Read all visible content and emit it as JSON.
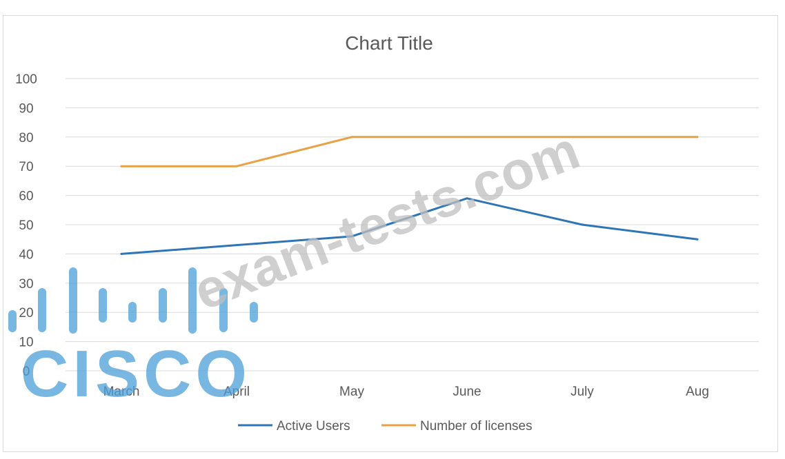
{
  "chart_data": {
    "type": "line",
    "title": "Chart Title",
    "categories": [
      "March",
      "April",
      "May",
      "June",
      "July",
      "Aug"
    ],
    "ylim": [
      0,
      100
    ],
    "yticks": [
      0,
      10,
      20,
      30,
      40,
      50,
      60,
      70,
      80,
      90,
      100
    ],
    "grid": true,
    "legend_position": "bottom",
    "series": [
      {
        "name": "Active Users",
        "color": "#2e75b6",
        "values": [
          40,
          43,
          46,
          59,
          50,
          45
        ]
      },
      {
        "name": "Number of licenses",
        "color": "#e9a146",
        "values": [
          70,
          70,
          80,
          80,
          80,
          80
        ]
      }
    ]
  },
  "watermark": {
    "text": "exam-tests.com",
    "logo_text": "CISCO"
  }
}
